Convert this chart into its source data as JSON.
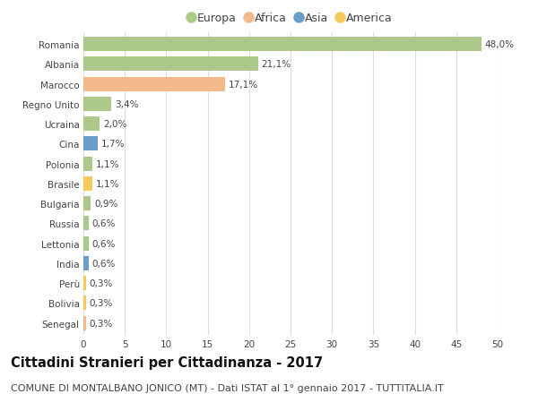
{
  "countries": [
    "Romania",
    "Albania",
    "Marocco",
    "Regno Unito",
    "Ucraina",
    "Cina",
    "Polonia",
    "Brasile",
    "Bulgaria",
    "Russia",
    "Lettonia",
    "India",
    "Perù",
    "Bolivia",
    "Senegal"
  ],
  "values": [
    48.0,
    21.1,
    17.1,
    3.4,
    2.0,
    1.7,
    1.1,
    1.1,
    0.9,
    0.6,
    0.6,
    0.6,
    0.3,
    0.3,
    0.3
  ],
  "labels": [
    "48,0%",
    "21,1%",
    "17,1%",
    "3,4%",
    "2,0%",
    "1,7%",
    "1,1%",
    "1,1%",
    "0,9%",
    "0,6%",
    "0,6%",
    "0,6%",
    "0,3%",
    "0,3%",
    "0,3%"
  ],
  "continents": [
    "Europa",
    "Europa",
    "Africa",
    "Europa",
    "Europa",
    "Asia",
    "Europa",
    "America",
    "Europa",
    "Europa",
    "Europa",
    "Asia",
    "America",
    "America",
    "Africa"
  ],
  "continent_colors": {
    "Europa": "#adc98a",
    "Africa": "#f2b98a",
    "Asia": "#6b9dc8",
    "America": "#f5ca5a"
  },
  "legend_order": [
    "Europa",
    "Africa",
    "Asia",
    "America"
  ],
  "title": "Cittadini Stranieri per Cittadinanza - 2017",
  "subtitle": "COMUNE DI MONTALBANO JONICO (MT) - Dati ISTAT al 1° gennaio 2017 - TUTTITALIA.IT",
  "xlim": [
    0,
    50
  ],
  "xticks": [
    0,
    5,
    10,
    15,
    20,
    25,
    30,
    35,
    40,
    45,
    50
  ],
  "background_color": "#ffffff",
  "grid_color": "#dddddd",
  "bar_height": 0.72,
  "title_fontsize": 10.5,
  "subtitle_fontsize": 8,
  "label_fontsize": 7.5,
  "tick_fontsize": 7.5,
  "legend_fontsize": 9
}
